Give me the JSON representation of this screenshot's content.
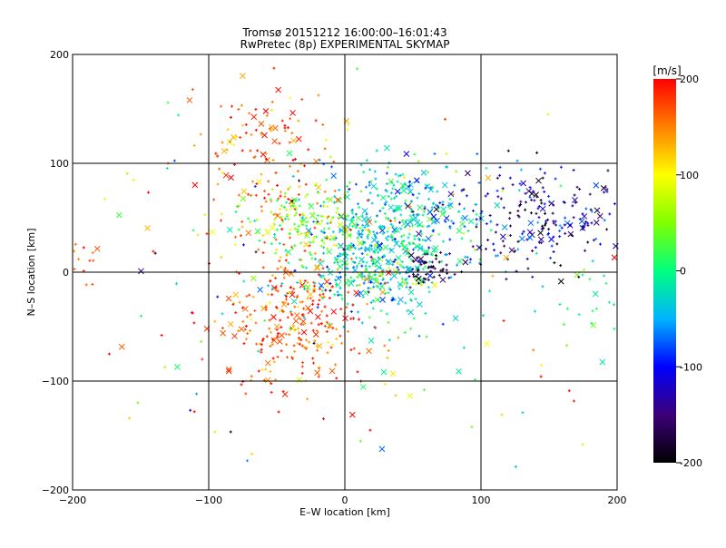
{
  "chart_data": {
    "type": "scatter",
    "title": "Tromsø 20151212 16:00:00–16:01:43",
    "subtitle": "RwPretec (8p) EXPERIMENTAL SKYMAP",
    "xlabel": "E–W location [km]",
    "ylabel": "N–S location [km]",
    "xlim": [
      -200,
      200
    ],
    "ylim": [
      -200,
      200
    ],
    "xticks": [
      -200,
      -100,
      0,
      100,
      200
    ],
    "yticks": [
      -200,
      -100,
      0,
      100,
      200
    ],
    "grid": true,
    "colorbar": {
      "label": "[m/s]",
      "range": [
        -200,
        200
      ],
      "ticks": [
        200,
        100,
        0,
        -100,
        -200
      ],
      "colormap": [
        "#000000",
        "#3c0078",
        "#0000ff",
        "#00b4ff",
        "#00ff80",
        "#80ff00",
        "#ffff00",
        "#ff8000",
        "#ff0000"
      ]
    },
    "markers": {
      "small": "plus",
      "large": "cross"
    },
    "clusters": [
      {
        "cx": 20,
        "cy": 10,
        "sx": 30,
        "sy": 25,
        "n": 420,
        "v": -20,
        "vs": 40
      },
      {
        "cx": 40,
        "cy": 55,
        "sx": 35,
        "sy": 25,
        "n": 260,
        "v": -30,
        "vs": 40
      },
      {
        "cx": 140,
        "cy": 50,
        "sx": 35,
        "sy": 22,
        "n": 220,
        "v": -140,
        "vs": 45
      },
      {
        "cx": -35,
        "cy": -40,
        "sx": 25,
        "sy": 30,
        "n": 280,
        "v": 170,
        "vs": 30
      },
      {
        "cx": -60,
        "cy": 100,
        "sx": 25,
        "sy": 35,
        "n": 160,
        "v": 160,
        "vs": 35
      },
      {
        "cx": -30,
        "cy": 45,
        "sx": 20,
        "sy": 15,
        "n": 120,
        "v": 60,
        "vs": 40
      },
      {
        "cx": 60,
        "cy": 5,
        "sx": 10,
        "sy": 8,
        "n": 60,
        "v": -170,
        "vs": 25
      },
      {
        "cx": 180,
        "cy": -20,
        "sx": 15,
        "sy": 20,
        "n": 25,
        "v": 10,
        "vs": 30
      },
      {
        "cx": -190,
        "cy": 10,
        "sx": 8,
        "sy": 15,
        "n": 15,
        "v": 150,
        "vs": 30
      },
      {
        "cx": 0,
        "cy": 0,
        "sx": 110,
        "sy": 90,
        "n": 180,
        "v": 60,
        "vs": 120
      }
    ]
  }
}
